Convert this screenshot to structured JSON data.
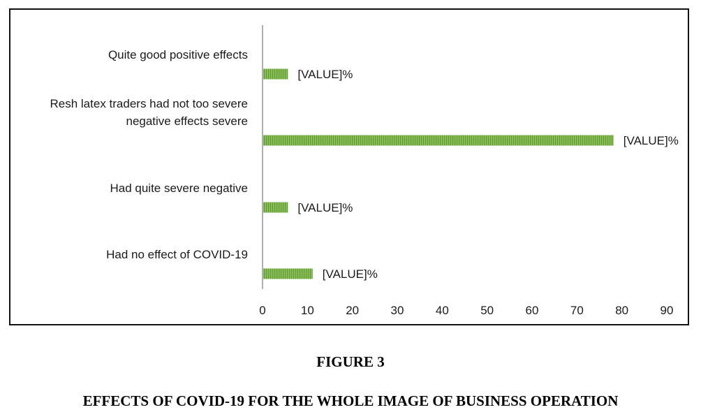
{
  "figure": {
    "number": "FIGURE 3",
    "caption": "EFFECTS OF COVID-19 FOR THE WHOLE IMAGE OF BUSINESS OPERATION"
  },
  "chart_data": {
    "type": "bar",
    "orientation": "horizontal",
    "categories": [
      [
        "Quite good positive effects"
      ],
      [
        "Resh latex traders  had not too severe",
        "negative effects severe"
      ],
      [
        "Had quite severe negative"
      ],
      [
        "Had no effect of COVID-19"
      ]
    ],
    "values": [
      5.5,
      78,
      5.5,
      11
    ],
    "value_labels": [
      "[VALUE]%",
      "[VALUE]%",
      "[VALUE]%",
      "[VALUE]%"
    ],
    "xticks": [
      "0",
      "10",
      "20",
      "30",
      "40",
      "50",
      "60",
      "70",
      "80",
      "90"
    ],
    "xlim": [
      0,
      90
    ],
    "grid": false,
    "bar_color": "#8dc05a",
    "bar_stripe_color": "#5f9a33"
  }
}
